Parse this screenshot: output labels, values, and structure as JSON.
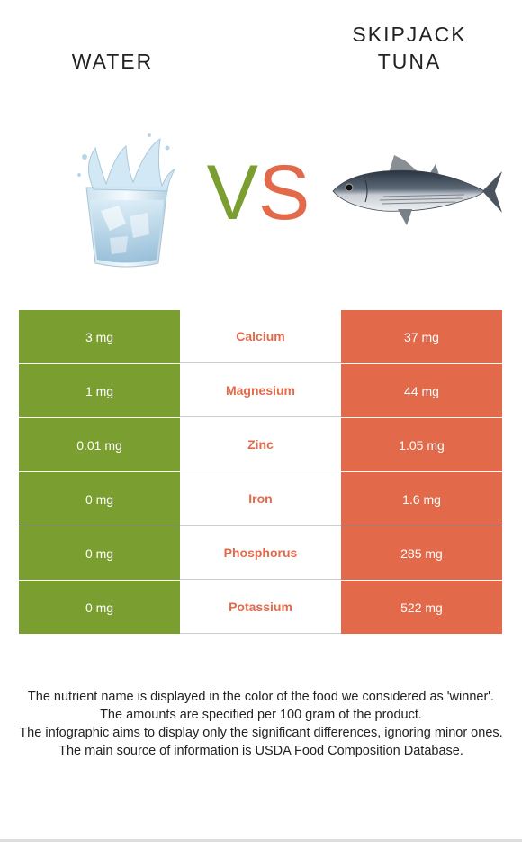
{
  "header": {
    "left_title": "WATER",
    "right_title_line1": "SKIPJACK",
    "right_title_line2": "TUNA",
    "vs_v": "V",
    "vs_s": "S"
  },
  "colors": {
    "water": "#7a9e2f",
    "tuna": "#e26a4a"
  },
  "icons": {
    "left": "water-glass-icon",
    "right": "skipjack-tuna-icon"
  },
  "rows": [
    {
      "left": "3 mg",
      "nutrient": "Calcium",
      "right": "37 mg"
    },
    {
      "left": "1 mg",
      "nutrient": "Magnesium",
      "right": "44 mg"
    },
    {
      "left": "0.01 mg",
      "nutrient": "Zinc",
      "right": "1.05 mg"
    },
    {
      "left": "0 mg",
      "nutrient": "Iron",
      "right": "1.6 mg"
    },
    {
      "left": "0 mg",
      "nutrient": "Phosphorus",
      "right": "285 mg"
    },
    {
      "left": "0 mg",
      "nutrient": "Potassium",
      "right": "522 mg"
    }
  ],
  "footer": [
    "The nutrient name is displayed in the color of the food we considered as 'winner'.",
    "The amounts are specified per 100 gram of the product.",
    "The infographic aims to display only the significant differences, ignoring minor ones.",
    "The main source of information is USDA Food Composition Database."
  ]
}
